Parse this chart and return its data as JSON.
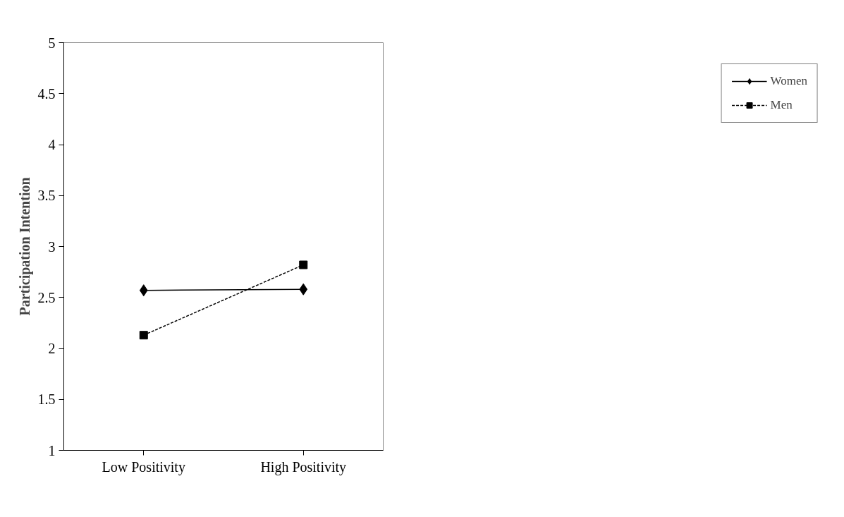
{
  "chart_data": {
    "type": "line",
    "ylabel": "Participation Intention",
    "categories": [
      "Low Positivity",
      "High Positivity"
    ],
    "series": [
      {
        "name": "Women",
        "color": "#000000",
        "values": [
          2.57,
          2.58
        ],
        "marker": "diamond",
        "line_style": "solid"
      },
      {
        "name": "Men",
        "color": "#000000",
        "values": [
          2.13,
          2.82
        ],
        "marker": "square",
        "line_style": "dashed"
      }
    ],
    "ylim": [
      1,
      5
    ],
    "yticks": [
      1,
      1.5,
      2,
      2.5,
      3,
      3.5,
      4,
      4.5,
      5
    ],
    "grid": false,
    "legend": "right"
  }
}
